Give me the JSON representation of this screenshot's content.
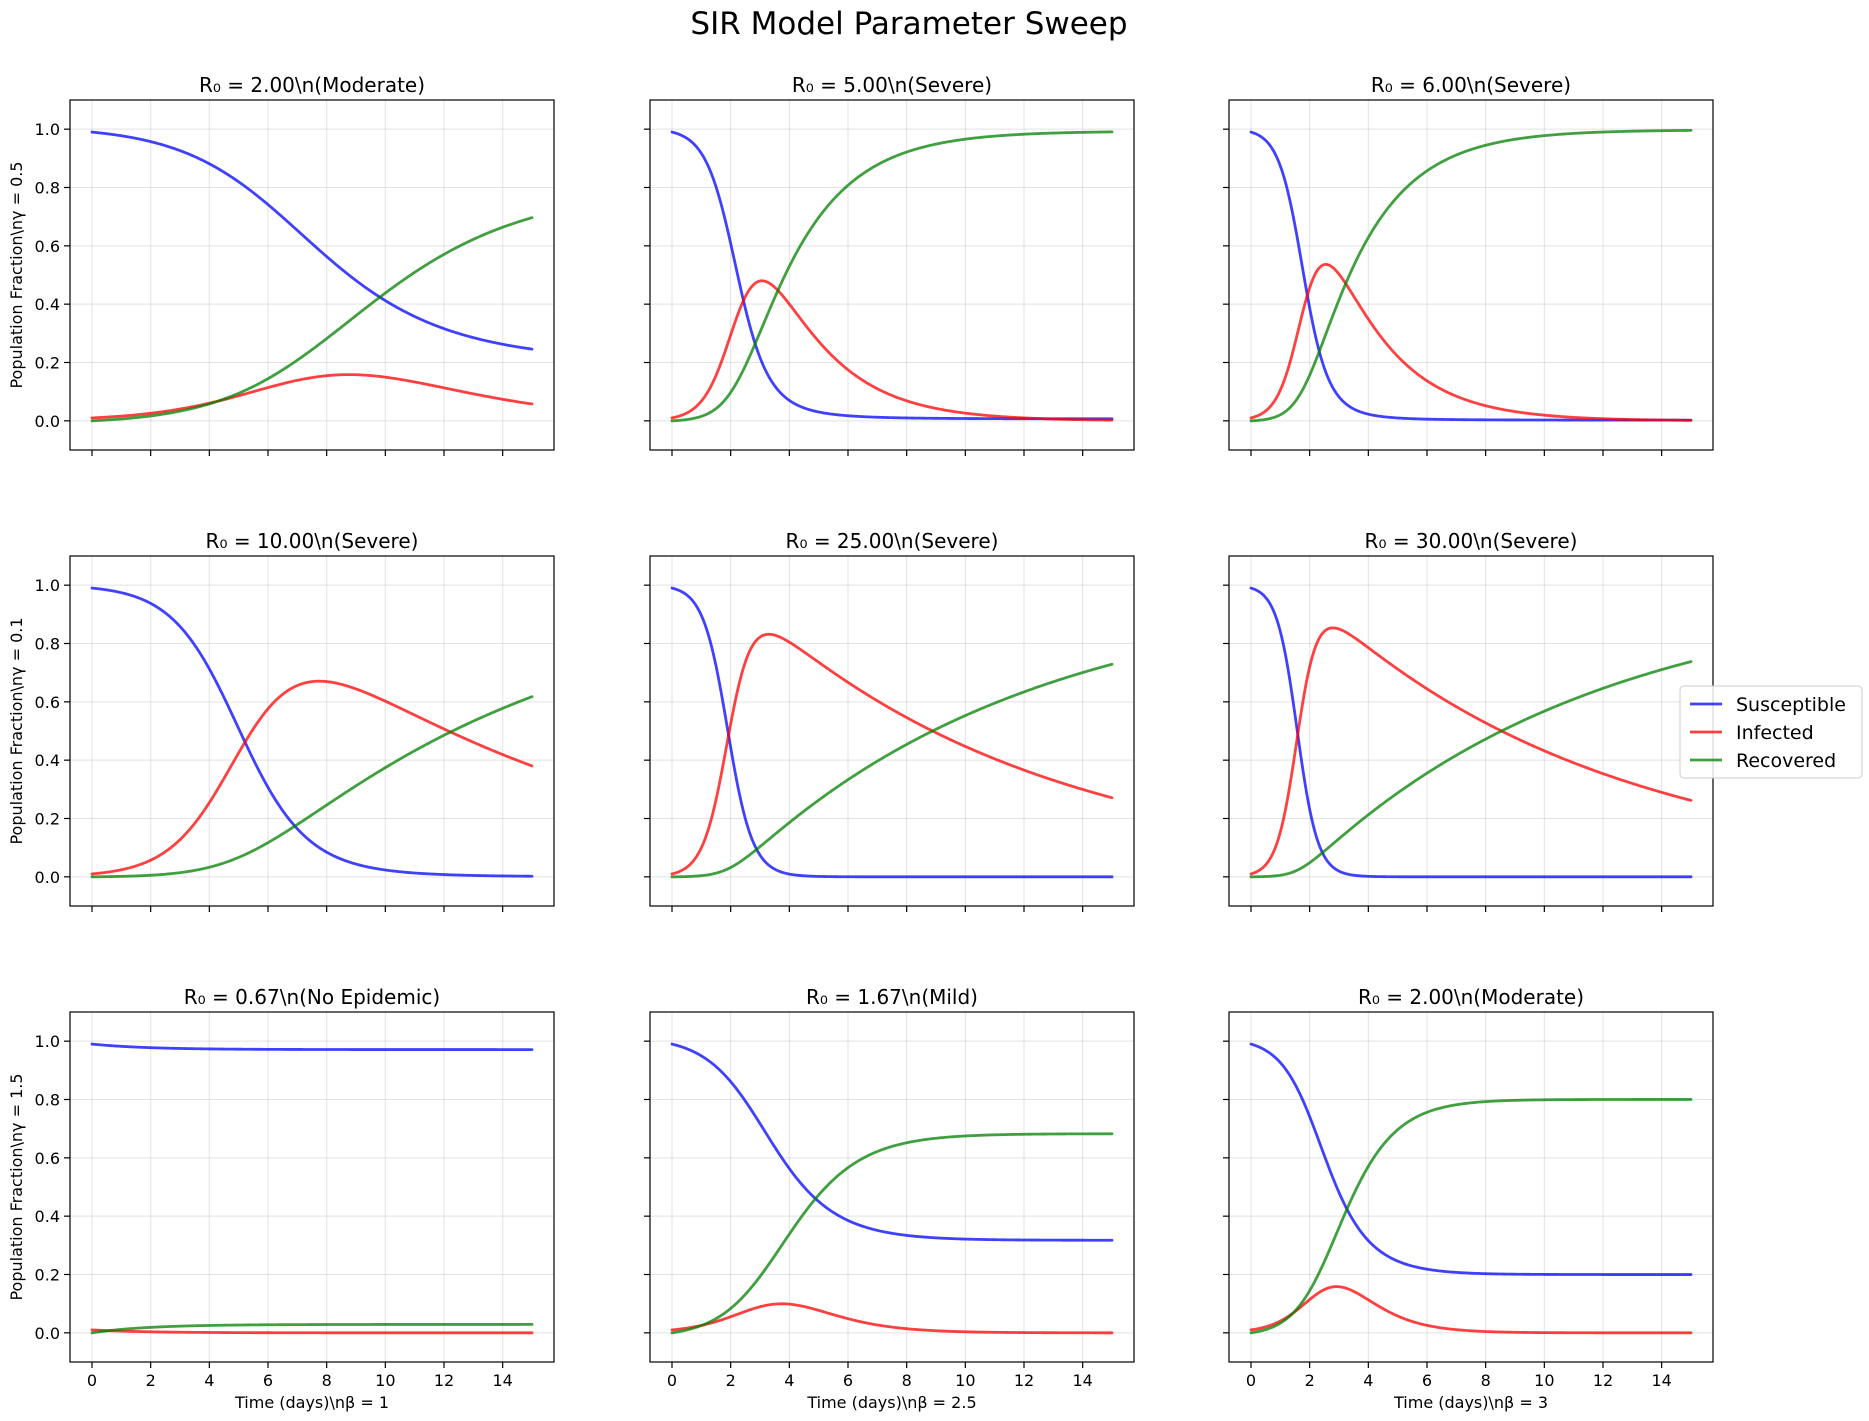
{
  "chart_data": {
    "type": "line",
    "title": "SIR Model Parameter Sweep",
    "colors": {
      "Susceptible": "#0000ff",
      "Infected": "#ff0000",
      "Recovered": "#008000"
    },
    "xlim": [
      -0.75,
      15.75
    ],
    "ylim": [
      -0.1,
      1.1
    ],
    "xticks": [
      0,
      2,
      4,
      6,
      8,
      10,
      12,
      14
    ],
    "yticks": [
      0.0,
      0.2,
      0.4,
      0.6,
      0.8,
      1.0
    ],
    "ytick_labels": [
      "0.0",
      "0.2",
      "0.4",
      "0.6",
      "0.8",
      "1.0"
    ],
    "grid": true,
    "legend": {
      "placement": "right",
      "entries": [
        "Susceptible",
        "Infected",
        "Recovered"
      ]
    },
    "row_ylabels": [
      "Population Fraction\\nγ = 0.5",
      "Population Fraction\\nγ = 0.1",
      "Population Fraction\\nγ = 1.5"
    ],
    "col_xlabels": [
      "Time (days)\\nβ = 1",
      "Time (days)\\nβ = 2.5",
      "Time (days)\\nβ = 3"
    ],
    "initial": {
      "S0": 0.99,
      "I0": 0.01,
      "R0": 0.0
    },
    "t_range": [
      0,
      15
    ],
    "panels": [
      {
        "title": "R₀ = 2.00\\n(Moderate)",
        "beta": 1,
        "gamma": 0.5
      },
      {
        "title": "R₀ = 5.00\\n(Severe)",
        "beta": 2.5,
        "gamma": 0.5
      },
      {
        "title": "R₀ = 6.00\\n(Severe)",
        "beta": 3,
        "gamma": 0.5
      },
      {
        "title": "R₀ = 10.00\\n(Severe)",
        "beta": 1,
        "gamma": 0.1
      },
      {
        "title": "R₀ = 25.00\\n(Severe)",
        "beta": 2.5,
        "gamma": 0.1
      },
      {
        "title": "R₀ = 30.00\\n(Severe)",
        "beta": 3,
        "gamma": 0.1
      },
      {
        "title": "R₀ = 0.67\\n(No Epidemic)",
        "beta": 1,
        "gamma": 1.5
      },
      {
        "title": "R₀ = 1.67\\n(Mild)",
        "beta": 2.5,
        "gamma": 1.5
      },
      {
        "title": "R₀ = 2.00\\n(Moderate)",
        "beta": 3,
        "gamma": 1.5
      }
    ]
  }
}
